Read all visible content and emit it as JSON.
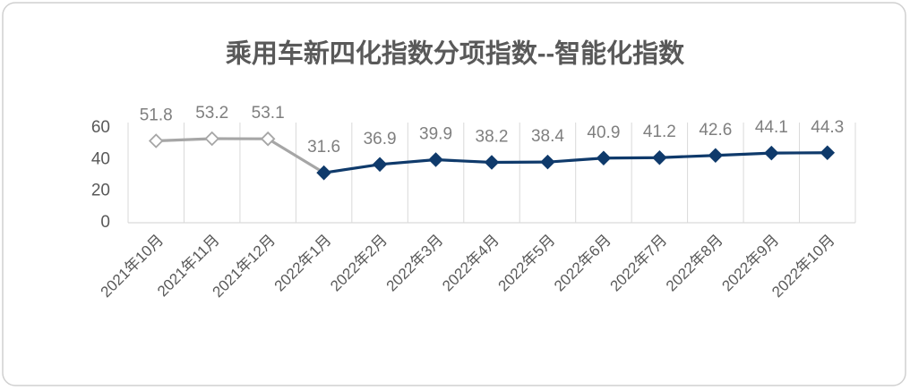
{
  "chart_data": {
    "type": "line",
    "title": "乘用车新四化指数分项指数--智能化指数",
    "categories": [
      "2021年10月",
      "2021年11月",
      "2021年12月",
      "2022年1月",
      "2022年2月",
      "2022年3月",
      "2022年4月",
      "2022年5月",
      "2022年6月",
      "2022年7月",
      "2022年8月",
      "2022年9月",
      "2022年10月"
    ],
    "series": [
      {
        "color": "#a6a6a6",
        "marker_fill": "#ffffff",
        "values": [
          51.8,
          53.2,
          53.1,
          31.6,
          null,
          null,
          null,
          null,
          null,
          null,
          null,
          null,
          null
        ]
      },
      {
        "color": "#0f3a6b",
        "marker_fill": "#0f3a6b",
        "values": [
          null,
          null,
          null,
          31.6,
          36.9,
          39.9,
          38.2,
          38.4,
          40.9,
          41.2,
          42.6,
          44.1,
          44.3
        ]
      }
    ],
    "ylim": [
      0,
      60
    ],
    "yticks": [
      0,
      20,
      40,
      60
    ],
    "grid": true
  }
}
